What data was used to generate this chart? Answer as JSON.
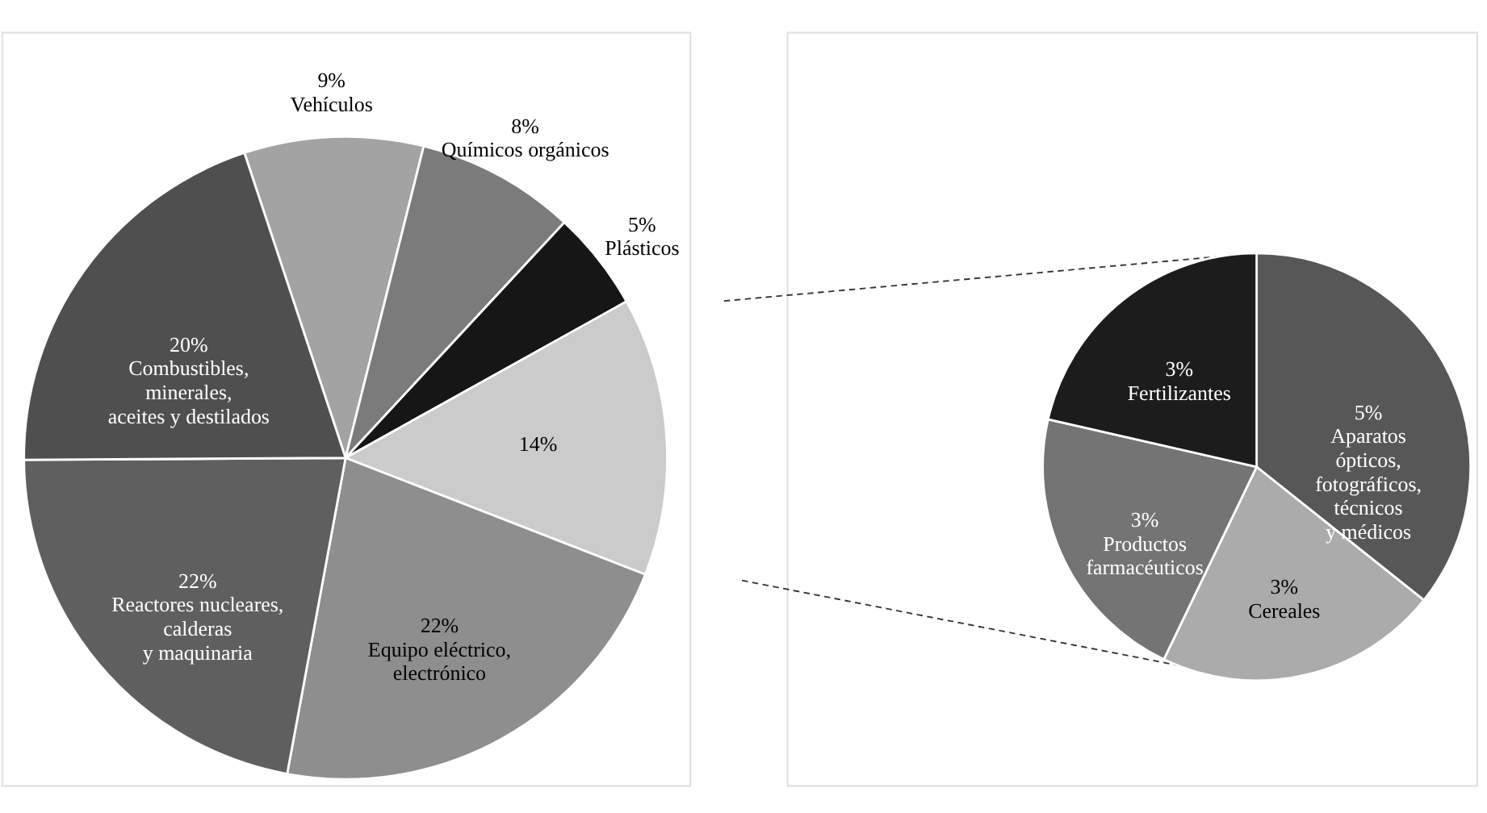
{
  "chart_data": [
    {
      "type": "pie",
      "categories": [
        "Vehículos",
        "Químicos orgánicos",
        "Plásticos",
        null,
        "Equipo eléctrico,\nelectrónico",
        "Reactores nucleares,\ncalderas\ny maquinaria",
        "Combustibles,\nminerales,\naceites y destilados"
      ],
      "values": [
        9,
        8,
        5,
        14,
        22,
        22,
        20
      ],
      "value_labels": [
        "9%",
        "8%",
        "5%",
        "14%",
        "22%",
        "22%",
        "20%"
      ],
      "colors": [
        "#a3a3a3",
        "#7b7b7b",
        "#161616",
        "#cbcbcb",
        "#8e8e8e",
        "#5f5f5f",
        "#4f4f4f"
      ]
    },
    {
      "type": "pie",
      "categories": [
        "Aparatos\nópticos,\nfotográficos,\ntécnicos\ny médicos",
        "Cereales",
        "Productos\nfarmacéuticos",
        "Fertilizantes"
      ],
      "values": [
        5,
        3,
        3,
        3
      ],
      "value_labels": [
        "5%",
        "3%",
        "3%",
        "3%"
      ],
      "colors": [
        "#575757",
        "#ababab",
        "#747474",
        "#1c1c1c"
      ]
    }
  ]
}
